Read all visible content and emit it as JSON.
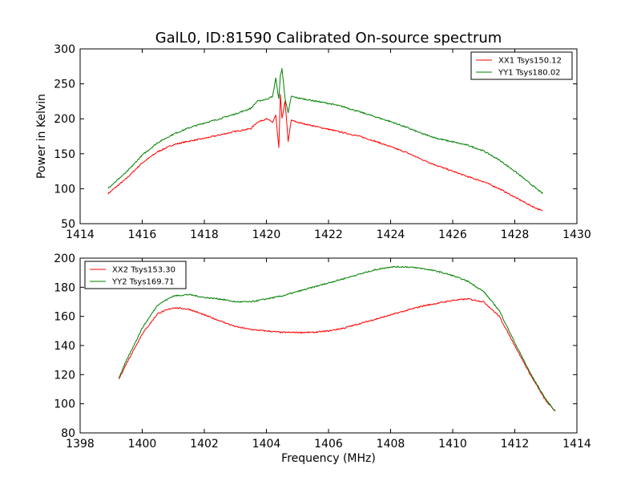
{
  "title": "GalL0, ID:81590 Calibrated On-source spectrum",
  "chart_data": [
    {
      "type": "line",
      "title": "GalL0, ID:81590 Calibrated On-source spectrum",
      "xlabel": "",
      "ylabel": "Power in Kelvin",
      "xlim": [
        1414,
        1430
      ],
      "ylim": [
        50,
        300
      ],
      "xticks": [
        1414,
        1416,
        1418,
        1420,
        1422,
        1424,
        1426,
        1428,
        1430
      ],
      "yticks": [
        50,
        100,
        150,
        200,
        250,
        300
      ],
      "grid": false,
      "legend_position": "top-right",
      "series": [
        {
          "name": "XX1 Tsys150.12",
          "color": "#ff0000",
          "x": [
            1414.9,
            1415.5,
            1416.0,
            1416.5,
            1417.0,
            1417.5,
            1418.0,
            1418.5,
            1419.0,
            1419.5,
            1419.7,
            1420.0,
            1420.2,
            1420.3,
            1420.4,
            1420.45,
            1420.5,
            1420.6,
            1420.7,
            1420.8,
            1421.0,
            1421.5,
            1422.0,
            1422.5,
            1423.0,
            1423.5,
            1424.0,
            1424.5,
            1425.0,
            1425.5,
            1426.0,
            1426.5,
            1427.0,
            1427.5,
            1428.0,
            1428.5,
            1428.9
          ],
          "y": [
            93,
            115,
            137,
            153,
            163,
            168,
            172,
            177,
            182,
            186,
            195,
            200,
            195,
            205,
            158,
            235,
            200,
            225,
            168,
            198,
            195,
            190,
            185,
            180,
            175,
            168,
            160,
            152,
            142,
            133,
            125,
            117,
            110,
            100,
            88,
            76,
            68
          ]
        },
        {
          "name": "YY1 Tsys180.02",
          "color": "#008000",
          "x": [
            1414.9,
            1415.5,
            1416.0,
            1416.5,
            1417.0,
            1417.5,
            1418.0,
            1418.5,
            1419.0,
            1419.5,
            1419.7,
            1420.0,
            1420.2,
            1420.3,
            1420.4,
            1420.45,
            1420.5,
            1420.6,
            1420.7,
            1420.8,
            1421.0,
            1421.5,
            1422.0,
            1422.5,
            1423.0,
            1423.5,
            1424.0,
            1424.5,
            1425.0,
            1425.5,
            1426.0,
            1426.5,
            1427.0,
            1427.5,
            1428.0,
            1428.5,
            1428.9
          ],
          "y": [
            101,
            124,
            148,
            166,
            178,
            187,
            194,
            200,
            207,
            215,
            225,
            228,
            232,
            258,
            228,
            262,
            272,
            230,
            208,
            232,
            230,
            226,
            222,
            217,
            210,
            203,
            196,
            188,
            179,
            172,
            167,
            162,
            154,
            141,
            125,
            107,
            93
          ]
        }
      ]
    },
    {
      "type": "line",
      "title": "",
      "xlabel": "Frequency (MHz)",
      "ylabel": "",
      "xlim": [
        1398,
        1414
      ],
      "ylim": [
        80,
        200
      ],
      "xticks": [
        1398,
        1400,
        1402,
        1404,
        1406,
        1408,
        1410,
        1412,
        1414
      ],
      "yticks": [
        80,
        100,
        120,
        140,
        160,
        180,
        200
      ],
      "grid": false,
      "legend_position": "top-left",
      "series": [
        {
          "name": "XX2 Tsys153.30",
          "color": "#ff0000",
          "x": [
            1399.25,
            1399.5,
            1400.0,
            1400.5,
            1401.0,
            1401.5,
            1402.0,
            1402.5,
            1403.0,
            1403.5,
            1404.0,
            1404.5,
            1405.0,
            1405.5,
            1406.0,
            1406.5,
            1407.0,
            1407.5,
            1408.0,
            1408.5,
            1409.0,
            1409.5,
            1410.0,
            1410.5,
            1411.0,
            1411.5,
            1412.0,
            1412.5,
            1413.0,
            1413.3
          ],
          "y": [
            117,
            128,
            148,
            162,
            166,
            165,
            161,
            157,
            153,
            151,
            150,
            149,
            149,
            149,
            150,
            152,
            155,
            158,
            161,
            164,
            167,
            169,
            171,
            172,
            170,
            160,
            140,
            120,
            102,
            95
          ]
        },
        {
          "name": "YY2 Tsys169.71",
          "color": "#008000",
          "x": [
            1399.25,
            1399.5,
            1400.0,
            1400.5,
            1401.0,
            1401.5,
            1402.0,
            1402.5,
            1403.0,
            1403.5,
            1404.0,
            1404.5,
            1405.0,
            1405.5,
            1406.0,
            1406.5,
            1407.0,
            1407.5,
            1408.0,
            1408.5,
            1409.0,
            1409.5,
            1410.0,
            1410.5,
            1411.0,
            1411.5,
            1412.0,
            1412.5,
            1413.0,
            1413.3
          ],
          "y": [
            118,
            130,
            152,
            168,
            174,
            175,
            173,
            172,
            170,
            170,
            172,
            174,
            177,
            180,
            183,
            186,
            189,
            192,
            194,
            194,
            193,
            191,
            188,
            184,
            177,
            164,
            142,
            121,
            103,
            95
          ]
        }
      ]
    }
  ]
}
